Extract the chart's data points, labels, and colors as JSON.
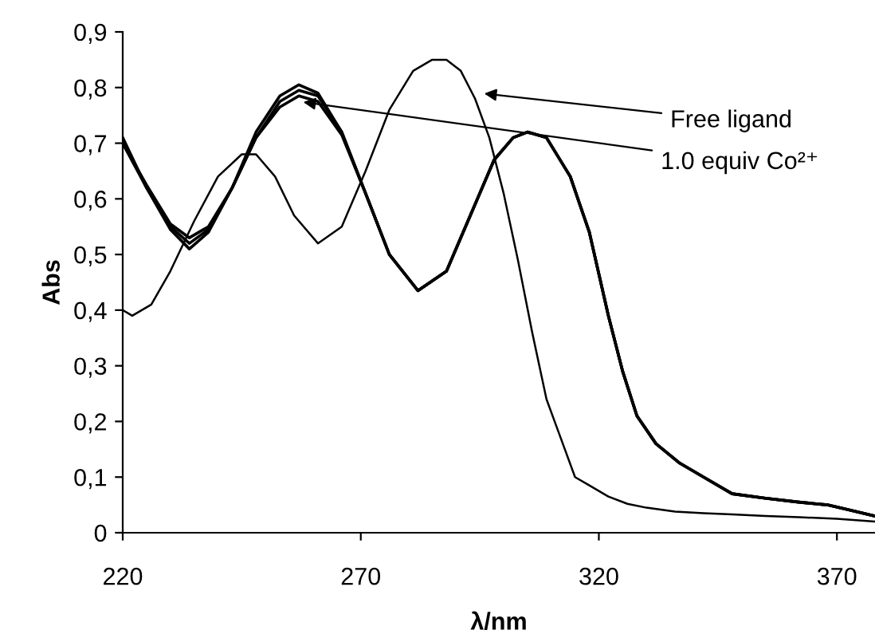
{
  "chart_data": {
    "type": "line",
    "xlabel": "λ/nm",
    "ylabel": "Abs",
    "xlim": [
      220,
      378
    ],
    "xticks": [
      220,
      270,
      320,
      370
    ],
    "ylim": [
      0,
      0.9
    ],
    "yticks": [
      0,
      {
        "value": 0.1,
        "label": "0,1"
      },
      {
        "value": 0.2,
        "label": "0,2"
      },
      {
        "value": 0.3,
        "label": "0,3"
      },
      {
        "value": 0.4,
        "label": "0,4"
      },
      {
        "value": 0.5,
        "label": "0,5"
      },
      {
        "value": 0.6,
        "label": "0,6"
      },
      {
        "value": 0.7,
        "label": "0,7"
      },
      {
        "value": 0.8,
        "label": "0,8"
      },
      {
        "value": 0.9,
        "label": "0,9"
      }
    ],
    "grid": false,
    "legend": false,
    "marker": "none",
    "line_style": "solid",
    "series": [
      {
        "color": "#000000",
        "x": [
          220,
          222,
          226,
          230,
          235,
          240,
          245,
          248,
          252,
          256,
          261,
          266,
          271,
          276,
          281,
          285,
          288,
          291,
          294,
          297,
          300,
          303,
          306,
          309,
          312,
          315,
          318,
          322,
          326,
          330,
          336,
          342,
          348,
          355,
          362,
          370,
          378
        ],
        "values": [
          0.4,
          0.39,
          0.41,
          0.47,
          0.56,
          0.64,
          0.68,
          0.68,
          0.64,
          0.57,
          0.52,
          0.55,
          0.65,
          0.76,
          0.83,
          0.85,
          0.85,
          0.83,
          0.78,
          0.71,
          0.61,
          0.49,
          0.36,
          0.24,
          0.17,
          0.1,
          0.085,
          0.065,
          0.052,
          0.045,
          0.038,
          0.035,
          0.033,
          0.03,
          0.028,
          0.025,
          0.02
        ]
      },
      {
        "color": "#000000",
        "x": [
          220,
          225,
          230,
          234,
          238,
          243,
          248,
          253,
          257,
          261,
          266,
          271,
          276,
          282,
          288,
          293,
          298,
          302,
          305,
          309,
          314,
          318,
          322,
          325,
          328,
          332,
          337,
          342,
          348,
          355,
          362,
          368,
          373,
          378
        ],
        "values": [
          0.71,
          0.62,
          0.545,
          0.51,
          0.54,
          0.62,
          0.72,
          0.785,
          0.805,
          0.79,
          0.72,
          0.61,
          0.5,
          0.435,
          0.47,
          0.57,
          0.67,
          0.71,
          0.72,
          0.71,
          0.64,
          0.54,
          0.39,
          0.29,
          0.21,
          0.16,
          0.125,
          0.1,
          0.07,
          0.062,
          0.055,
          0.05,
          0.04,
          0.03
        ]
      },
      {
        "color": "#000000",
        "x": [
          220,
          225,
          230,
          234,
          238,
          243,
          248,
          253,
          257,
          261,
          266,
          271,
          276,
          282,
          288,
          293,
          298,
          302,
          305,
          309,
          314,
          318,
          322,
          325,
          328,
          332,
          337,
          342,
          348,
          355,
          362,
          368,
          373,
          378
        ],
        "values": [
          0.7,
          0.62,
          0.55,
          0.52,
          0.545,
          0.62,
          0.71,
          0.775,
          0.795,
          0.785,
          0.72,
          0.61,
          0.5,
          0.435,
          0.47,
          0.57,
          0.67,
          0.71,
          0.72,
          0.71,
          0.64,
          0.54,
          0.39,
          0.29,
          0.21,
          0.16,
          0.125,
          0.1,
          0.07,
          0.062,
          0.055,
          0.05,
          0.04,
          0.03
        ]
      },
      {
        "color": "#000000",
        "x": [
          220,
          225,
          230,
          234,
          238,
          243,
          248,
          253,
          257,
          261,
          266,
          271,
          276,
          282,
          288,
          293,
          298,
          302,
          305,
          309,
          314,
          318,
          322,
          325,
          328,
          332,
          337,
          342,
          348,
          355,
          362,
          368,
          373,
          378
        ],
        "values": [
          0.7,
          0.625,
          0.555,
          0.53,
          0.55,
          0.62,
          0.71,
          0.765,
          0.785,
          0.775,
          0.715,
          0.61,
          0.5,
          0.435,
          0.47,
          0.57,
          0.67,
          0.71,
          0.72,
          0.71,
          0.64,
          0.54,
          0.39,
          0.29,
          0.21,
          0.16,
          0.125,
          0.1,
          0.07,
          0.062,
          0.055,
          0.05,
          0.04,
          0.03
        ]
      }
    ],
    "annotations": [
      {
        "text": "Free ligand",
        "x": 295,
        "y": 0.79
      },
      {
        "text": "1.0 equiv Co²⁺",
        "x": 257,
        "y": 0.775
      }
    ]
  }
}
